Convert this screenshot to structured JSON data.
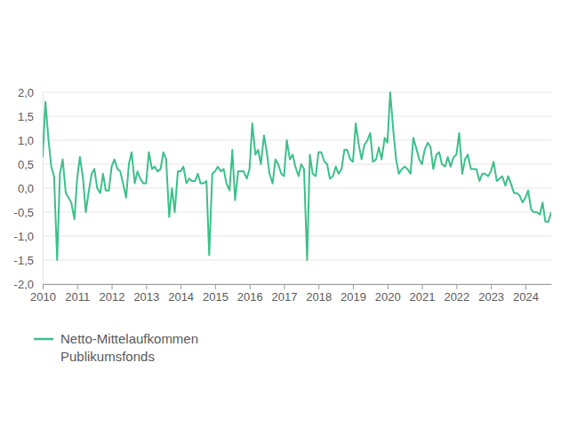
{
  "chart_data": {
    "type": "line",
    "x": [
      2010.0,
      2010.08,
      2010.17,
      2010.25,
      2010.33,
      2010.42,
      2010.5,
      2010.58,
      2010.67,
      2010.75,
      2010.83,
      2010.92,
      2011.0,
      2011.08,
      2011.17,
      2011.25,
      2011.33,
      2011.42,
      2011.5,
      2011.58,
      2011.67,
      2011.75,
      2011.83,
      2011.92,
      2012.0,
      2012.08,
      2012.17,
      2012.25,
      2012.33,
      2012.42,
      2012.5,
      2012.58,
      2012.67,
      2012.75,
      2012.83,
      2012.92,
      2013.0,
      2013.08,
      2013.17,
      2013.25,
      2013.33,
      2013.42,
      2013.5,
      2013.58,
      2013.67,
      2013.75,
      2013.83,
      2013.92,
      2014.0,
      2014.08,
      2014.17,
      2014.25,
      2014.33,
      2014.42,
      2014.5,
      2014.58,
      2014.67,
      2014.75,
      2014.83,
      2014.92,
      2015.0,
      2015.08,
      2015.17,
      2015.25,
      2015.33,
      2015.42,
      2015.5,
      2015.58,
      2015.67,
      2015.75,
      2015.83,
      2015.92,
      2016.0,
      2016.08,
      2016.17,
      2016.25,
      2016.33,
      2016.42,
      2016.5,
      2016.58,
      2016.67,
      2016.75,
      2016.83,
      2016.92,
      2017.0,
      2017.08,
      2017.17,
      2017.25,
      2017.33,
      2017.42,
      2017.5,
      2017.58,
      2017.67,
      2017.75,
      2017.83,
      2017.92,
      2018.0,
      2018.08,
      2018.17,
      2018.25,
      2018.33,
      2018.42,
      2018.5,
      2018.58,
      2018.67,
      2018.75,
      2018.83,
      2018.92,
      2019.0,
      2019.08,
      2019.17,
      2019.25,
      2019.33,
      2019.42,
      2019.5,
      2019.58,
      2019.67,
      2019.75,
      2019.83,
      2019.92,
      2020.0,
      2020.08,
      2020.17,
      2020.25,
      2020.33,
      2020.42,
      2020.5,
      2020.58,
      2020.67,
      2020.75,
      2020.83,
      2020.92,
      2021.0,
      2021.08,
      2021.17,
      2021.25,
      2021.33,
      2021.42,
      2021.5,
      2021.58,
      2021.67,
      2021.75,
      2021.83,
      2021.92,
      2022.0,
      2022.08,
      2022.17,
      2022.25,
      2022.33,
      2022.42,
      2022.5,
      2022.58,
      2022.67,
      2022.75,
      2022.83,
      2022.92,
      2023.0,
      2023.08,
      2023.17,
      2023.25,
      2023.33,
      2023.42,
      2023.5,
      2023.58,
      2023.67,
      2023.75,
      2023.83,
      2023.92,
      2024.0,
      2024.08,
      2024.17,
      2024.25,
      2024.33,
      2024.42,
      2024.5,
      2024.58,
      2024.67,
      2024.75
    ],
    "xlim": [
      2010,
      2024.75
    ],
    "xticks": [
      2010,
      2011,
      2012,
      2013,
      2014,
      2015,
      2016,
      2017,
      2018,
      2019,
      2020,
      2021,
      2022,
      2023,
      2024
    ],
    "ylim": [
      -2,
      2
    ],
    "yticks": [
      {
        "value": 2,
        "label": "2,0"
      },
      {
        "value": 1.5,
        "label": "1,5"
      },
      {
        "value": 1,
        "label": "1,0"
      },
      {
        "value": 0.5,
        "label": "0,5"
      },
      {
        "value": 0,
        "label": "0,0"
      },
      {
        "value": -0.5,
        "label": "-0,5"
      },
      {
        "value": -1,
        "label": "-1,0"
      },
      {
        "value": -1.5,
        "label": "-1,5"
      },
      {
        "value": -2,
        "label": "-2,0"
      }
    ],
    "grid": true,
    "series": [
      {
        "name": "Netto-Mittelaufkommen Publikumsfonds",
        "color": "#3cc08a",
        "values": [
          0.65,
          1.8,
          1.0,
          0.45,
          0.25,
          -1.5,
          0.3,
          0.6,
          -0.1,
          -0.2,
          -0.3,
          -0.65,
          0.2,
          0.65,
          0.2,
          -0.5,
          -0.1,
          0.3,
          0.4,
          0.0,
          -0.1,
          0.3,
          -0.05,
          -0.05,
          0.45,
          0.6,
          0.4,
          0.35,
          0.1,
          -0.2,
          0.5,
          0.75,
          0.1,
          0.35,
          0.2,
          0.1,
          0.1,
          0.75,
          0.4,
          0.45,
          0.35,
          0.4,
          0.75,
          0.6,
          -0.6,
          0.0,
          -0.5,
          0.35,
          0.35,
          0.45,
          0.1,
          0.2,
          0.15,
          0.15,
          0.3,
          0.1,
          0.1,
          0.15,
          -1.4,
          0.3,
          0.35,
          0.45,
          0.35,
          0.4,
          0.1,
          -0.05,
          0.8,
          -0.25,
          0.35,
          0.35,
          0.35,
          0.2,
          0.4,
          1.35,
          0.7,
          0.8,
          0.5,
          1.1,
          0.75,
          0.3,
          0.1,
          0.6,
          0.5,
          0.3,
          0.25,
          1.0,
          0.6,
          0.7,
          0.45,
          0.25,
          0.5,
          0.4,
          -1.5,
          0.7,
          0.3,
          0.25,
          0.75,
          0.75,
          0.55,
          0.5,
          0.2,
          0.25,
          0.45,
          0.3,
          0.4,
          0.8,
          0.8,
          0.6,
          0.55,
          1.35,
          0.9,
          0.6,
          0.9,
          1.0,
          1.15,
          0.55,
          0.6,
          0.85,
          0.6,
          1.05,
          0.95,
          2.0,
          1.2,
          0.6,
          0.3,
          0.4,
          0.45,
          0.4,
          0.3,
          1.05,
          0.85,
          0.6,
          0.5,
          0.8,
          0.95,
          0.85,
          0.4,
          0.7,
          0.75,
          0.5,
          0.45,
          0.65,
          0.45,
          0.65,
          0.7,
          1.15,
          0.3,
          0.6,
          0.7,
          0.4,
          0.4,
          0.4,
          0.15,
          0.3,
          0.3,
          0.25,
          0.35,
          0.55,
          0.15,
          0.2,
          0.25,
          0.05,
          0.25,
          0.1,
          -0.1,
          -0.1,
          -0.15,
          -0.3,
          -0.2,
          -0.05,
          -0.45,
          -0.5,
          -0.5,
          -0.55,
          -0.3,
          -0.7,
          -0.7,
          -0.5
        ]
      }
    ]
  }
}
